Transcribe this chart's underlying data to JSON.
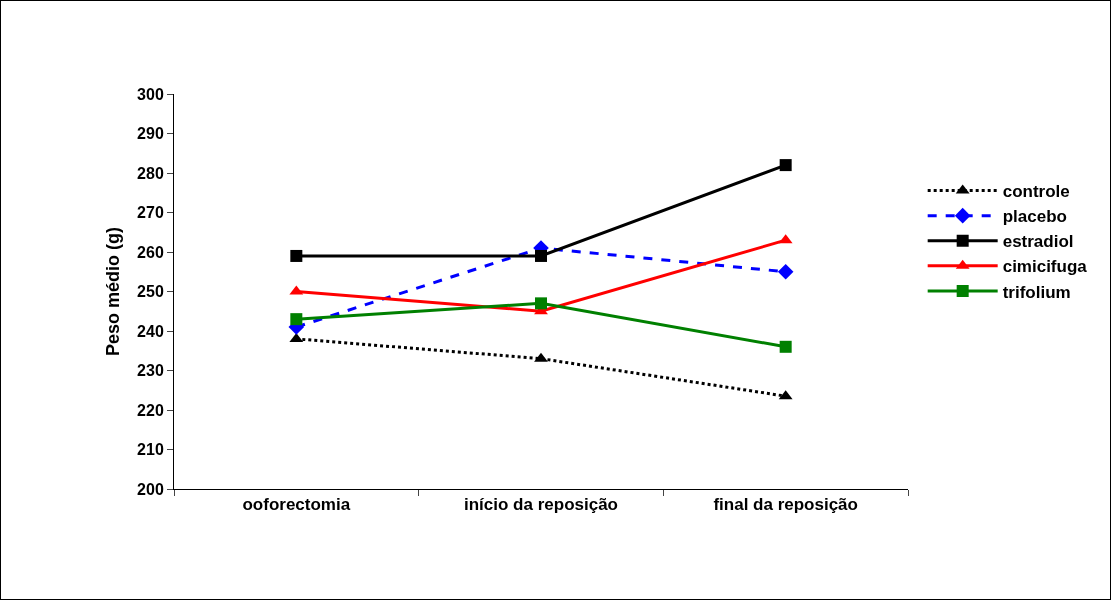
{
  "chart_data": {
    "type": "line",
    "ylabel": "Peso médio (g)",
    "categories": [
      "ooforectomia",
      "início da reposição",
      "final da reposição"
    ],
    "series": [
      {
        "name": "controle",
        "color": "#000000",
        "marker": "triangle",
        "line_style": "dotted",
        "values": [
          238,
          233,
          223.5
        ]
      },
      {
        "name": "placebo",
        "color": "#0000ff",
        "marker": "diamond",
        "line_style": "dashed",
        "values": [
          241,
          261,
          255
        ]
      },
      {
        "name": "estradiol",
        "color": "#000000",
        "marker": "square",
        "line_style": "solid",
        "values": [
          259,
          259,
          282
        ]
      },
      {
        "name": "cimicifuga",
        "color": "#ff0000",
        "marker": "triangle",
        "line_style": "solid",
        "values": [
          250,
          245,
          263
        ]
      },
      {
        "name": "trifolium",
        "color": "#008000",
        "marker": "square",
        "line_style": "solid",
        "values": [
          243,
          247,
          236
        ]
      }
    ],
    "ylim": [
      200,
      300
    ],
    "yticks": [
      200,
      210,
      220,
      230,
      240,
      250,
      260,
      270,
      280,
      290,
      300
    ],
    "grid": false,
    "legend": "right"
  }
}
